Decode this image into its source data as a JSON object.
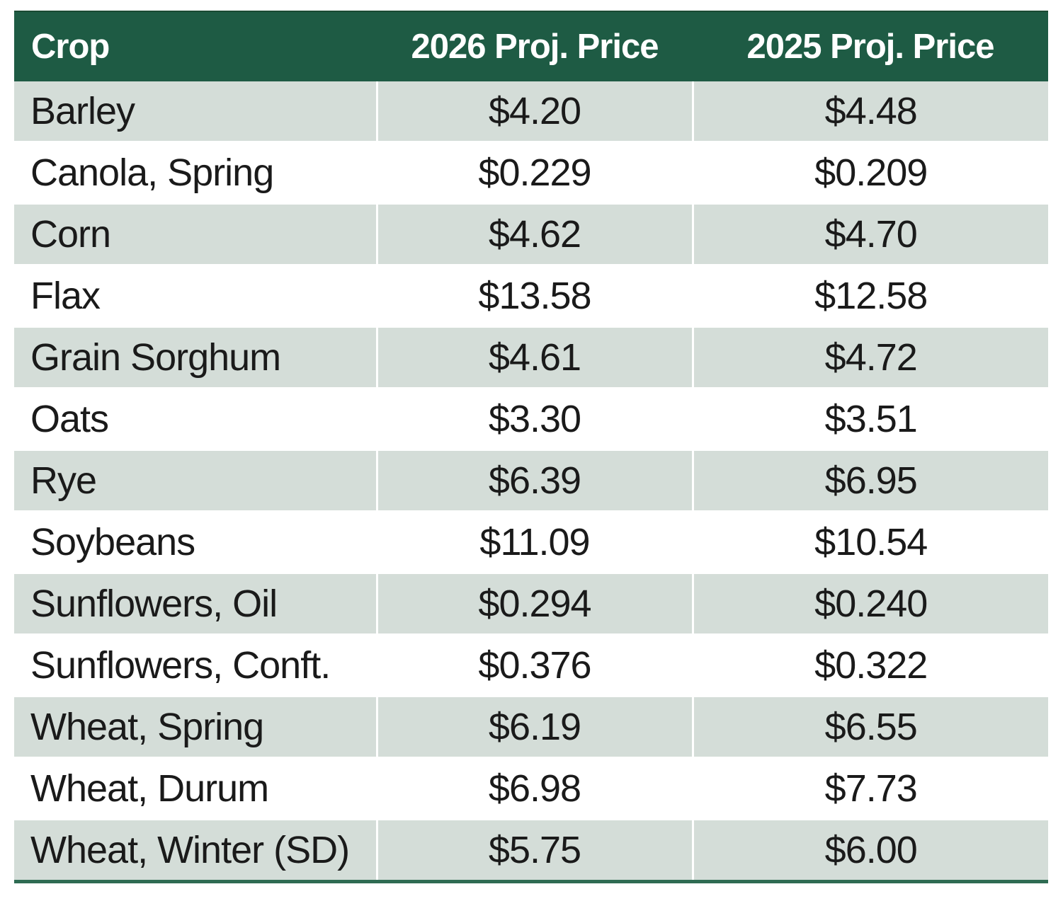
{
  "table": {
    "columns": [
      "Crop",
      "2026 Proj. Price",
      "2025 Proj. Price"
    ],
    "rows": [
      {
        "crop": "Barley",
        "price_2026": "$4.20",
        "price_2025": "$4.48"
      },
      {
        "crop": "Canola, Spring",
        "price_2026": "$0.229",
        "price_2025": "$0.209"
      },
      {
        "crop": "Corn",
        "price_2026": "$4.62",
        "price_2025": "$4.70"
      },
      {
        "crop": "Flax",
        "price_2026": "$13.58",
        "price_2025": "$12.58"
      },
      {
        "crop": "Grain Sorghum",
        "price_2026": "$4.61",
        "price_2025": "$4.72"
      },
      {
        "crop": "Oats",
        "price_2026": "$3.30",
        "price_2025": "$3.51"
      },
      {
        "crop": "Rye",
        "price_2026": "$6.39",
        "price_2025": "$6.95"
      },
      {
        "crop": "Soybeans",
        "price_2026": "$11.09",
        "price_2025": "$10.54"
      },
      {
        "crop": "Sunflowers, Oil",
        "price_2026": "$0.294",
        "price_2025": "$0.240"
      },
      {
        "crop": "Sunflowers, Conft.",
        "price_2026": "$0.376",
        "price_2025": "$0.322"
      },
      {
        "crop": "Wheat, Spring",
        "price_2026": "$6.19",
        "price_2025": "$6.55"
      },
      {
        "crop": "Wheat, Durum",
        "price_2026": "$6.98",
        "price_2025": "$7.73"
      },
      {
        "crop": "Wheat, Winter (SD)",
        "price_2026": "$5.75",
        "price_2025": "$6.00"
      }
    ]
  },
  "colors": {
    "header_bg": "#1E5B44",
    "header_text": "#FFFFFF",
    "band_row_bg": "#D4DDD8",
    "white_row_bg": "#FFFFFF",
    "body_text": "#1A1A1A",
    "bottom_border": "#2E6B52",
    "top_edge": "#1A4A33"
  },
  "chart_data": {
    "type": "table",
    "columns": [
      "Crop",
      "2026 Proj. Price",
      "2025 Proj. Price"
    ],
    "rows": [
      [
        "Barley",
        4.2,
        4.48
      ],
      [
        "Canola, Spring",
        0.229,
        0.209
      ],
      [
        "Corn",
        4.62,
        4.7
      ],
      [
        "Flax",
        13.58,
        12.58
      ],
      [
        "Grain Sorghum",
        4.61,
        4.72
      ],
      [
        "Oats",
        3.3,
        3.51
      ],
      [
        "Rye",
        6.39,
        6.95
      ],
      [
        "Soybeans",
        11.09,
        10.54
      ],
      [
        "Sunflowers, Oil",
        0.294,
        0.24
      ],
      [
        "Sunflowers, Conft.",
        0.376,
        0.322
      ],
      [
        "Wheat, Spring",
        6.19,
        6.55
      ],
      [
        "Wheat, Durum",
        6.98,
        7.73
      ],
      [
        "Wheat, Winter (SD)",
        5.75,
        6.0
      ]
    ],
    "currency": "$",
    "legend_position": "none",
    "grid": "white-gridlines-on-banded-rows"
  }
}
